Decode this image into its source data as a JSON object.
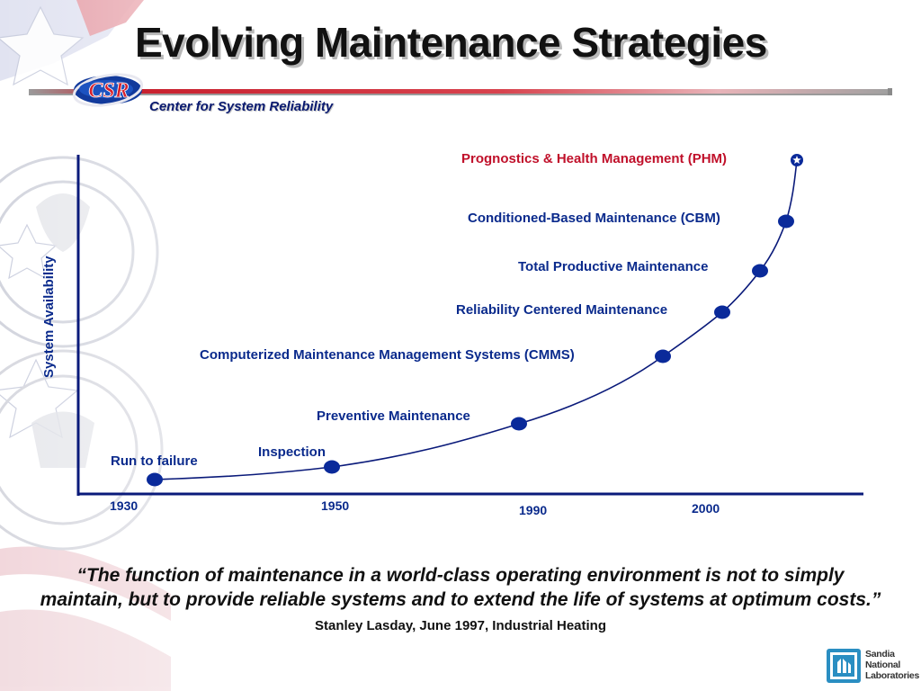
{
  "slide": {
    "title": "Evolving Maintenance Strategies",
    "org_name": "Center for System Reliability",
    "logo_text": "CSR",
    "quote": "“The function of maintenance in a world-class operating environment is not to simply maintain, but to provide reliable systems and to extend the life of systems at optimum costs.”",
    "quote_citation": "Stanley Lasday, June 1997, Industrial Heating",
    "footer_logo_lines": [
      "Sandia",
      "National",
      "Laboratories"
    ]
  },
  "diagram": {
    "y_axis_label": "System Availability",
    "year_labels": [
      "1930",
      "1950",
      "1990",
      "2000"
    ],
    "milestones": [
      {
        "label": "Run to failure",
        "marker": "dot"
      },
      {
        "label": "Inspection",
        "marker": "dot"
      },
      {
        "label": "Preventive Maintenance",
        "marker": "dot"
      },
      {
        "label": "Computerized Maintenance Management Systems (CMMS)",
        "marker": "dot"
      },
      {
        "label": "Reliability Centered Maintenance",
        "marker": "dot"
      },
      {
        "label": "Total Productive Maintenance",
        "marker": "dot"
      },
      {
        "label": "Conditioned-Based Maintenance (CBM)",
        "marker": "dot"
      },
      {
        "label": "Prognostics & Health Management (PHM)",
        "marker": "star"
      }
    ],
    "colors": {
      "label_blue": "#0a2a8c",
      "highlight_red": "#c0102a",
      "axis": "#0a1a7a",
      "dot": "#0a2a9a"
    }
  }
}
